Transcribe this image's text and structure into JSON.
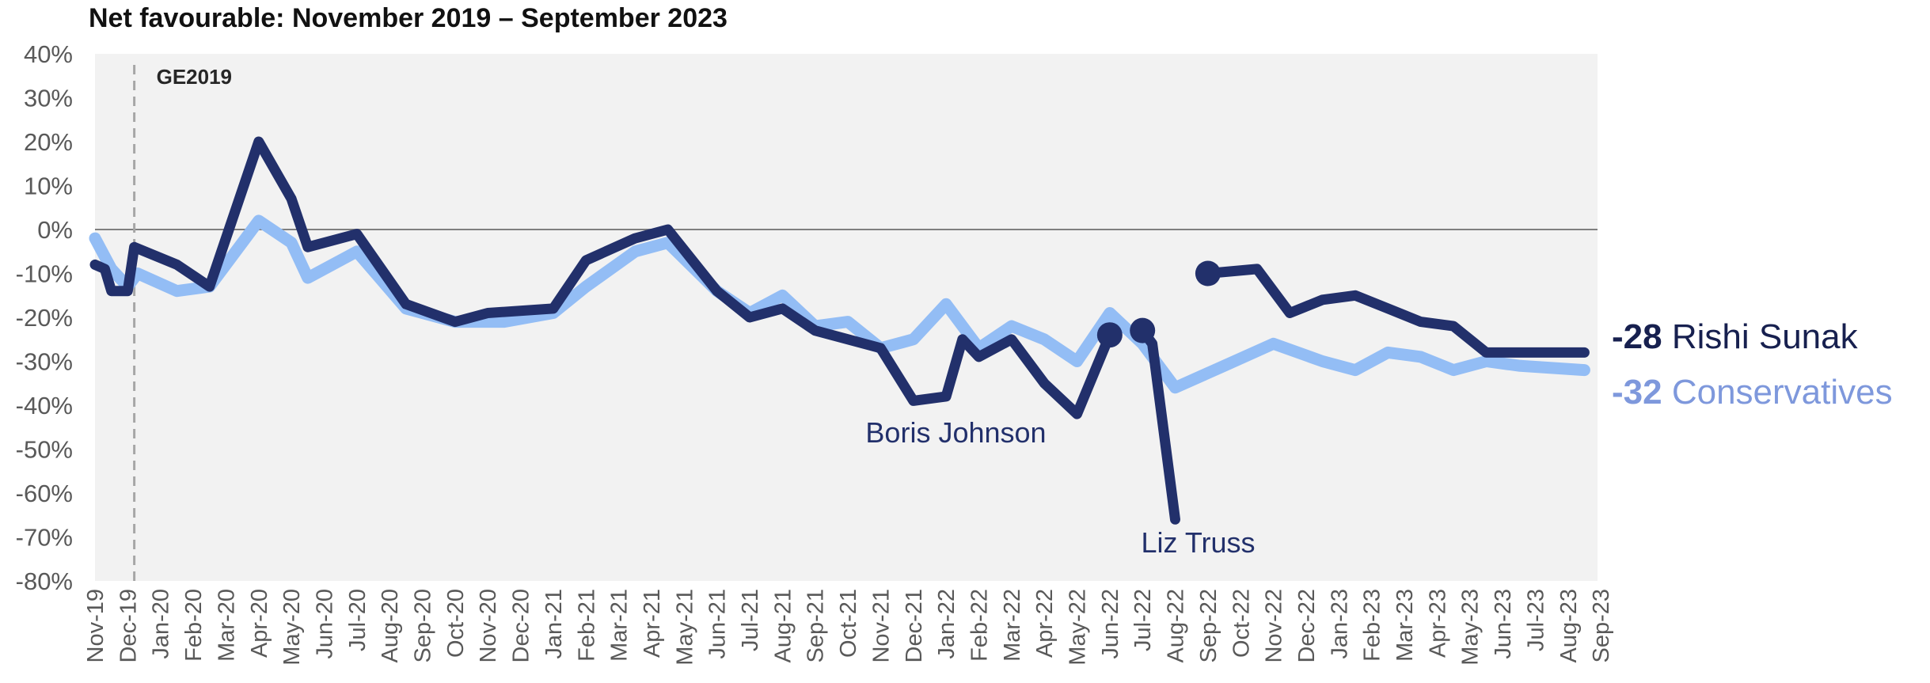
{
  "chart_data": {
    "type": "line",
    "title": "Net favourable: November 2019 – September 2023",
    "y_ticks": [
      "40%",
      "30%",
      "20%",
      "10%",
      "0%",
      "-10%",
      "-20%",
      "-30%",
      "-40%",
      "-50%",
      "-60%",
      "-70%",
      "-80%"
    ],
    "ylim": [
      -80,
      40
    ],
    "x_ticks": [
      "Nov-19",
      "Dec-19",
      "Jan-20",
      "Feb-20",
      "Mar-20",
      "Apr-20",
      "May-20",
      "Jun-20",
      "Jul-20",
      "Aug-20",
      "Sep-20",
      "Oct-20",
      "Nov-20",
      "Dec-20",
      "Jan-21",
      "Feb-21",
      "Mar-21",
      "Apr-21",
      "May-21",
      "Jun-21",
      "Jul-21",
      "Aug-21",
      "Sep-21",
      "Oct-21",
      "Nov-21",
      "Dec-21",
      "Jan-22",
      "Feb-22",
      "Mar-22",
      "Apr-22",
      "May-22",
      "Jun-22",
      "Jul-22",
      "Aug-22",
      "Sep-22",
      "Oct-22",
      "Nov-22",
      "Dec-22",
      "Jan-23",
      "Feb-23",
      "Mar-23",
      "Apr-23",
      "May-23",
      "Jun-23",
      "Jul-23",
      "Aug-23",
      "Sep-23"
    ],
    "reference_line": {
      "label": "GE2019",
      "x": 1.2
    },
    "zero_line": 0,
    "series": [
      {
        "name": "Conservatives",
        "color": "#93bdf5",
        "points": [
          [
            0,
            -2
          ],
          [
            0.5,
            -9
          ],
          [
            1,
            -13
          ],
          [
            1.3,
            -10
          ],
          [
            2.5,
            -14
          ],
          [
            3.5,
            -13
          ],
          [
            5,
            2
          ],
          [
            6,
            -3
          ],
          [
            6.5,
            -11
          ],
          [
            8,
            -5
          ],
          [
            9.5,
            -18
          ],
          [
            11,
            -21
          ],
          [
            12.5,
            -21
          ],
          [
            14,
            -19
          ],
          [
            15,
            -13
          ],
          [
            16.5,
            -5
          ],
          [
            17.5,
            -3
          ],
          [
            19,
            -14
          ],
          [
            20,
            -19
          ],
          [
            21,
            -15
          ],
          [
            22,
            -22
          ],
          [
            23,
            -21
          ],
          [
            24,
            -27
          ],
          [
            25,
            -25
          ],
          [
            26,
            -17
          ],
          [
            27,
            -27
          ],
          [
            28,
            -22
          ],
          [
            29,
            -25
          ],
          [
            30,
            -30
          ],
          [
            31,
            -19
          ],
          [
            32,
            -26
          ],
          [
            33,
            -36
          ],
          [
            34.5,
            -31
          ],
          [
            36,
            -26
          ],
          [
            37.5,
            -30
          ],
          [
            38.5,
            -32
          ],
          [
            39.5,
            -28
          ],
          [
            40.5,
            -29
          ],
          [
            41.5,
            -32
          ],
          [
            42.5,
            -30
          ],
          [
            43.5,
            -31
          ],
          [
            45.5,
            -32
          ]
        ]
      },
      {
        "name": "Boris Johnson",
        "color": "#22306b",
        "points": [
          [
            0,
            -8
          ],
          [
            0.3,
            -9
          ],
          [
            0.5,
            -14
          ],
          [
            1,
            -14
          ],
          [
            1.2,
            -4
          ],
          [
            2.5,
            -8
          ],
          [
            3.5,
            -13
          ],
          [
            5,
            20
          ],
          [
            6,
            7
          ],
          [
            6.5,
            -4
          ],
          [
            8,
            -1
          ],
          [
            9.5,
            -17
          ],
          [
            11,
            -21
          ],
          [
            12,
            -19
          ],
          [
            14,
            -18
          ],
          [
            15,
            -7
          ],
          [
            16.5,
            -2
          ],
          [
            17.5,
            0
          ],
          [
            19,
            -14
          ],
          [
            20,
            -20
          ],
          [
            21,
            -18
          ],
          [
            22,
            -23
          ],
          [
            24,
            -27
          ],
          [
            25,
            -39
          ],
          [
            26,
            -38
          ],
          [
            26.5,
            -25
          ],
          [
            27,
            -29
          ],
          [
            28,
            -25
          ],
          [
            29,
            -35
          ],
          [
            30,
            -42
          ],
          [
            31,
            -24
          ]
        ]
      },
      {
        "name": "Liz Truss",
        "color": "#22306b",
        "points": [
          [
            32,
            -23
          ],
          [
            32.3,
            -26
          ],
          [
            33,
            -66
          ]
        ]
      },
      {
        "name": "Rishi Sunak",
        "color": "#22306b",
        "points": [
          [
            34,
            -10
          ],
          [
            35.5,
            -9
          ],
          [
            36.5,
            -19
          ],
          [
            37.5,
            -16
          ],
          [
            38.5,
            -15
          ],
          [
            39.5,
            -18
          ],
          [
            40.5,
            -21
          ],
          [
            41.5,
            -22
          ],
          [
            42.5,
            -28
          ],
          [
            45.5,
            -28
          ]
        ]
      }
    ],
    "start_markers": [
      {
        "series": "Boris Johnson",
        "x": 31,
        "y": -24
      },
      {
        "series": "Liz Truss",
        "x": 32,
        "y": -23
      },
      {
        "series": "Rishi Sunak",
        "x": 34,
        "y": -10
      }
    ],
    "annotations": [
      {
        "text": "Boris Johnson",
        "x": 26.3,
        "y": -48.5
      },
      {
        "text": "Liz Truss",
        "x": 33.7,
        "y": -73.5
      }
    ],
    "legend_labels": [
      {
        "value": "-28",
        "name": "Rishi Sunak",
        "color": "#17204f"
      },
      {
        "value": "-32",
        "name": "Conservatives",
        "color": "#7e98dc"
      }
    ]
  }
}
